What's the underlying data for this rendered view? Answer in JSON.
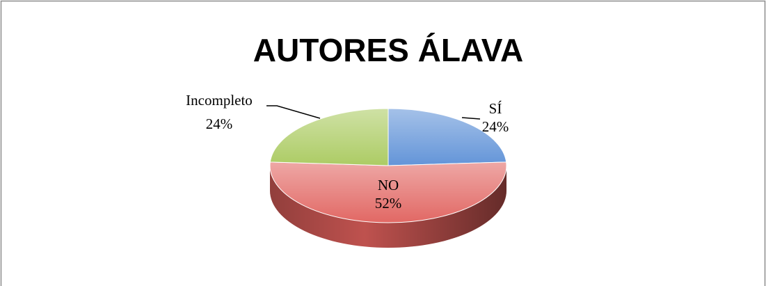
{
  "chart_data": {
    "type": "pie3d",
    "title": "AUTORES ÁLAVA",
    "categories": [
      "SÍ",
      "NO",
      "Incompleto"
    ],
    "values": [
      24,
      52,
      24
    ],
    "value_labels": [
      "24%",
      "52%",
      "24%"
    ],
    "colors": [
      "#5b8fd6",
      "#e0605c",
      "#a8c95c"
    ]
  }
}
